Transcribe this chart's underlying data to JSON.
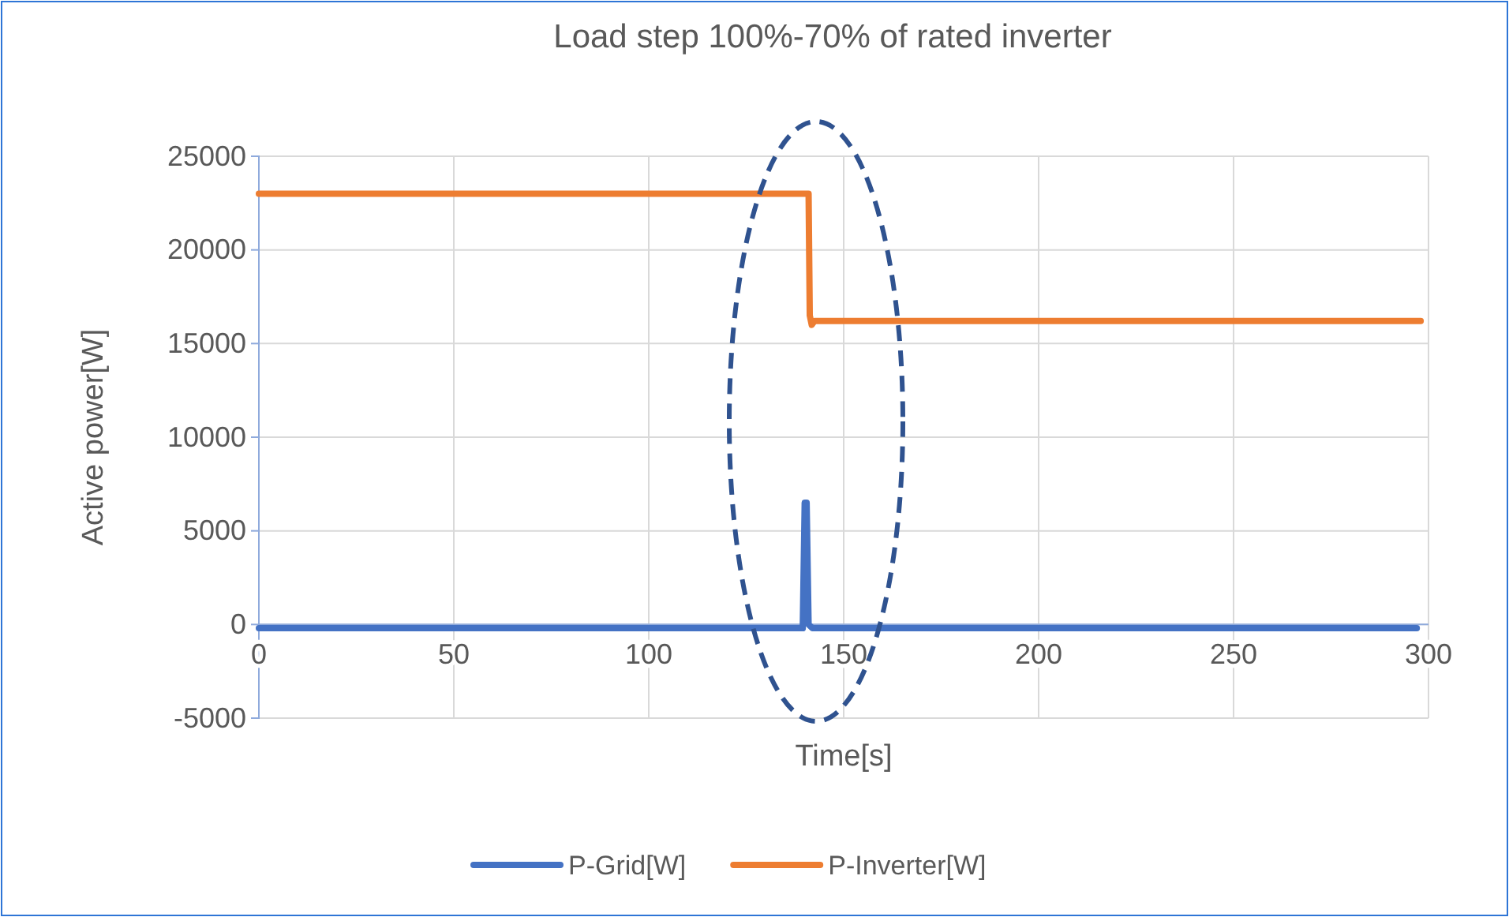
{
  "chart_data": {
    "type": "line",
    "title": "Load step 100%-70% of rated inverter",
    "xlabel": "Time[s]",
    "ylabel": "Active power[W]",
    "xlim": [
      0,
      300
    ],
    "xticks": [
      0,
      50,
      100,
      150,
      200,
      250,
      300
    ],
    "ylim": [
      -5000,
      25000
    ],
    "yticks": [
      -5000,
      0,
      5000,
      10000,
      15000,
      20000,
      25000
    ],
    "grid": true,
    "legend": "bottom",
    "marker": "none",
    "line_style": "solid",
    "series": [
      {
        "name": "P-Grid[W]",
        "color": "#4472c4",
        "x": [
          0,
          50,
          100,
          139.5,
          140,
          140.5,
          141,
          142,
          200,
          250,
          297
        ],
        "values": [
          -200,
          -200,
          -200,
          -200,
          6500,
          6500,
          0,
          -200,
          -200,
          -200,
          -200
        ]
      },
      {
        "name": "P-Inverter[W]",
        "color": "#ed7d31",
        "x": [
          0,
          50,
          100,
          141,
          141.3,
          141.8,
          142.5,
          200,
          250,
          298
        ],
        "values": [
          23000,
          23000,
          23000,
          23000,
          16500,
          16000,
          16200,
          16200,
          16200,
          16200
        ]
      }
    ]
  }
}
